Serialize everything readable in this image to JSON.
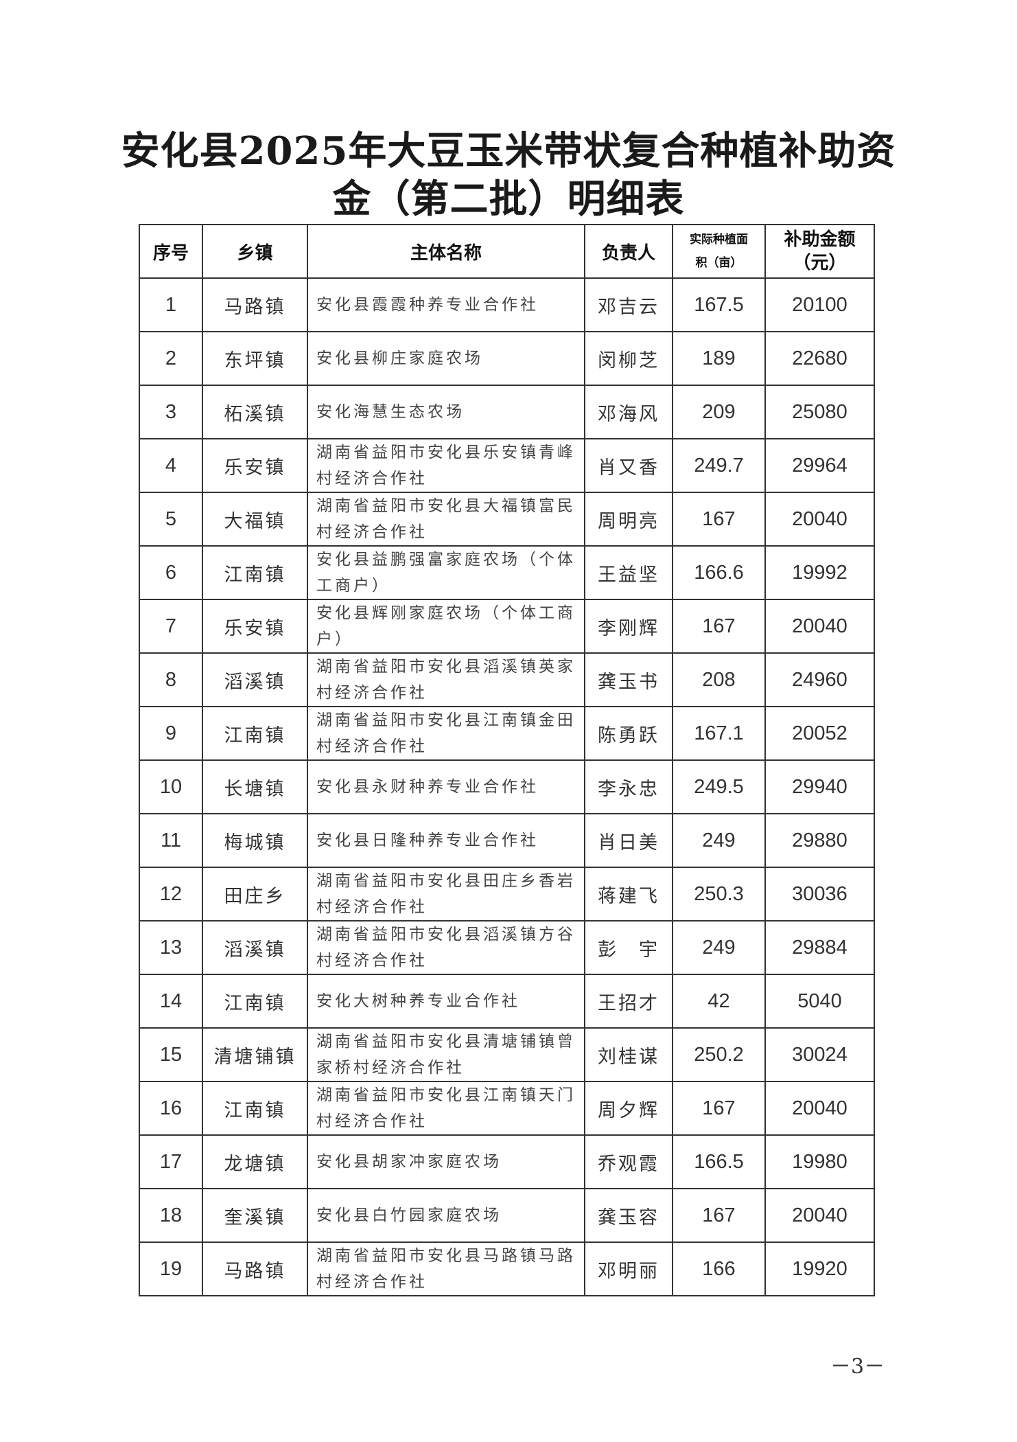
{
  "title_line1": "安化县2025年大豆玉米带状复合种植补助资",
  "title_line2": "金（第二批）明细表",
  "headers": {
    "index": "序号",
    "town": "乡镇",
    "entity": "主体名称",
    "person": "负责人",
    "area_line1": "实际种植面",
    "area_line2": "积（亩）",
    "amount_line1": "补助金额",
    "amount_line2": "（元）"
  },
  "rows": [
    {
      "no": "1",
      "town": "马路镇",
      "entity": "安化县霞霞种养专业合作社",
      "person": "邓吉云",
      "area": "167.5",
      "amount": "20100"
    },
    {
      "no": "2",
      "town": "东坪镇",
      "entity": "安化县柳庄家庭农场",
      "person": "闵柳芝",
      "area": "189",
      "amount": "22680"
    },
    {
      "no": "3",
      "town": "柘溪镇",
      "entity": "安化海慧生态农场",
      "person": "邓海风",
      "area": "209",
      "amount": "25080"
    },
    {
      "no": "4",
      "town": "乐安镇",
      "entity": "湖南省益阳市安化县乐安镇青峰村经济合作社",
      "person": "肖又香",
      "area": "249.7",
      "amount": "29964"
    },
    {
      "no": "5",
      "town": "大福镇",
      "entity": "湖南省益阳市安化县大福镇富民村经济合作社",
      "person": "周明亮",
      "area": "167",
      "amount": "20040"
    },
    {
      "no": "6",
      "town": "江南镇",
      "entity": "安化县益鹏强富家庭农场（个体工商户）",
      "person": "王益坚",
      "area": "166.6",
      "amount": "19992"
    },
    {
      "no": "7",
      "town": "乐安镇",
      "entity": "安化县辉刚家庭农场（个体工商户）",
      "person": "李刚辉",
      "area": "167",
      "amount": "20040"
    },
    {
      "no": "8",
      "town": "滔溪镇",
      "entity": "湖南省益阳市安化县滔溪镇英家村经济合作社",
      "person": "龚玉书",
      "area": "208",
      "amount": "24960"
    },
    {
      "no": "9",
      "town": "江南镇",
      "entity": "湖南省益阳市安化县江南镇金田村经济合作社",
      "person": "陈勇跃",
      "area": "167.1",
      "amount": "20052"
    },
    {
      "no": "10",
      "town": "长塘镇",
      "entity": "安化县永财种养专业合作社",
      "person": "李永忠",
      "area": "249.5",
      "amount": "29940"
    },
    {
      "no": "11",
      "town": "梅城镇",
      "entity": "安化县日隆种养专业合作社",
      "person": "肖日美",
      "area": "249",
      "amount": "29880"
    },
    {
      "no": "12",
      "town": "田庄乡",
      "entity": "湖南省益阳市安化县田庄乡香岩村经济合作社",
      "person": "蒋建飞",
      "area": "250.3",
      "amount": "30036"
    },
    {
      "no": "13",
      "town": "滔溪镇",
      "entity": "湖南省益阳市安化县滔溪镇方谷村经济合作社",
      "person": "彭　宇",
      "area": "249",
      "amount": "29884"
    },
    {
      "no": "14",
      "town": "江南镇",
      "entity": "安化大树种养专业合作社",
      "person": "王招才",
      "area": "42",
      "amount": "5040"
    },
    {
      "no": "15",
      "town": "清塘铺镇",
      "entity": "湖南省益阳市安化县清塘铺镇曾家桥村经济合作社",
      "person": "刘桂谋",
      "area": "250.2",
      "amount": "30024"
    },
    {
      "no": "16",
      "town": "江南镇",
      "entity": "湖南省益阳市安化县江南镇天门村经济合作社",
      "person": "周夕辉",
      "area": "167",
      "amount": "20040"
    },
    {
      "no": "17",
      "town": "龙塘镇",
      "entity": "安化县胡家冲家庭农场",
      "person": "乔观霞",
      "area": "166.5",
      "amount": "19980"
    },
    {
      "no": "18",
      "town": "奎溪镇",
      "entity": "安化县白竹园家庭农场",
      "person": "龚玉容",
      "area": "167",
      "amount": "20040"
    },
    {
      "no": "19",
      "town": "马路镇",
      "entity": "湖南省益阳市安化县马路镇马路村经济合作社",
      "person": "邓明丽",
      "area": "166",
      "amount": "19920"
    }
  ],
  "page_number": "－3－"
}
